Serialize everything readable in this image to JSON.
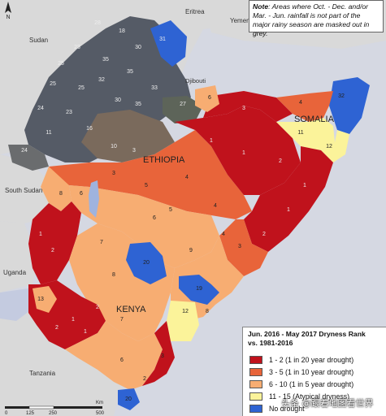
{
  "note": {
    "bold": "Note",
    "text": ": Areas where Oct. - Dec. and/or Mar. - Jun. rainfall is not part of the major rainy season are masked out in grey."
  },
  "countries": {
    "ethiopia": "ETHIOPIA",
    "somalia": "SOMALIA",
    "kenya": "KENYA"
  },
  "neighbors": {
    "eritrea": "Eritrea",
    "yemen": "Yemen",
    "sudan": "Sudan",
    "djibouti": "Djibouti",
    "south_sudan": "South Sudan",
    "uganda": "Uganda",
    "tanzania": "Tanzania"
  },
  "legend": {
    "title_line1": "Jun. 2016 - May 2017 Dryness Rank",
    "title_line2": "vs. 1981-2016",
    "items": [
      {
        "label": "1 - 2 (1 in 20 year drought)",
        "color": "#c0121c"
      },
      {
        "label": "3 - 5 (1 in 10 year drought)",
        "color": "#e8643a"
      },
      {
        "label": "6 - 10 (1 in 5 year drought)",
        "color": "#f7ad72"
      },
      {
        "label": "11 - 15 (Atypical dryness)",
        "color": "#fbf39a"
      },
      {
        "label": "No drought",
        "color": "#2e63d3"
      }
    ]
  },
  "scale": {
    "ticks": [
      "0",
      "125",
      "250",
      "500"
    ],
    "unit": "Km"
  },
  "watermark": "头条 @跟着地图看世界",
  "colors": {
    "sea": "#d5d8e2",
    "land_other": "#d9d9d9",
    "masked": "#555b66",
    "rank_1_2": "#c0121c",
    "rank_3_5": "#e8643a",
    "rank_6_10": "#f7ad72",
    "rank_11_15": "#fbf39a",
    "no_drought": "#2e63d3"
  },
  "region_numbers": {
    "masked_north": [
      "28",
      "18",
      "23",
      "25",
      "35",
      "30",
      "25",
      "25",
      "24",
      "23",
      "32",
      "35",
      "33",
      "30",
      "35",
      "34",
      "23",
      "30",
      "18",
      "16",
      "26",
      "25",
      "33",
      "31",
      "29",
      "27",
      "18",
      "23",
      "25",
      "28",
      "24",
      "23",
      "16"
    ],
    "red_regions": [
      "1",
      "1",
      "1",
      "2",
      "1",
      "1",
      "2",
      "2",
      "2",
      "2",
      "1",
      "1",
      "1",
      "1",
      "1",
      "1",
      "2",
      "1",
      "2",
      "2",
      "1",
      "2",
      "1"
    ],
    "orange_regions": [
      "4",
      "3",
      "5",
      "4",
      "3",
      "5",
      "4",
      "5",
      "3",
      "3",
      "4",
      "4",
      "3",
      "3",
      "5",
      "4",
      "3",
      "4",
      "5",
      "4"
    ],
    "light_regions": [
      "6",
      "7",
      "8",
      "6",
      "9",
      "7",
      "8",
      "9",
      "10",
      "6",
      "7",
      "10",
      "6",
      "7",
      "8",
      "9",
      "10",
      "7",
      "8",
      "6"
    ],
    "yellow_regions": [
      "11",
      "12",
      "11",
      "12",
      "15",
      "13"
    ],
    "blue_regions": [
      "31",
      "32",
      "20",
      "19",
      "20"
    ]
  }
}
